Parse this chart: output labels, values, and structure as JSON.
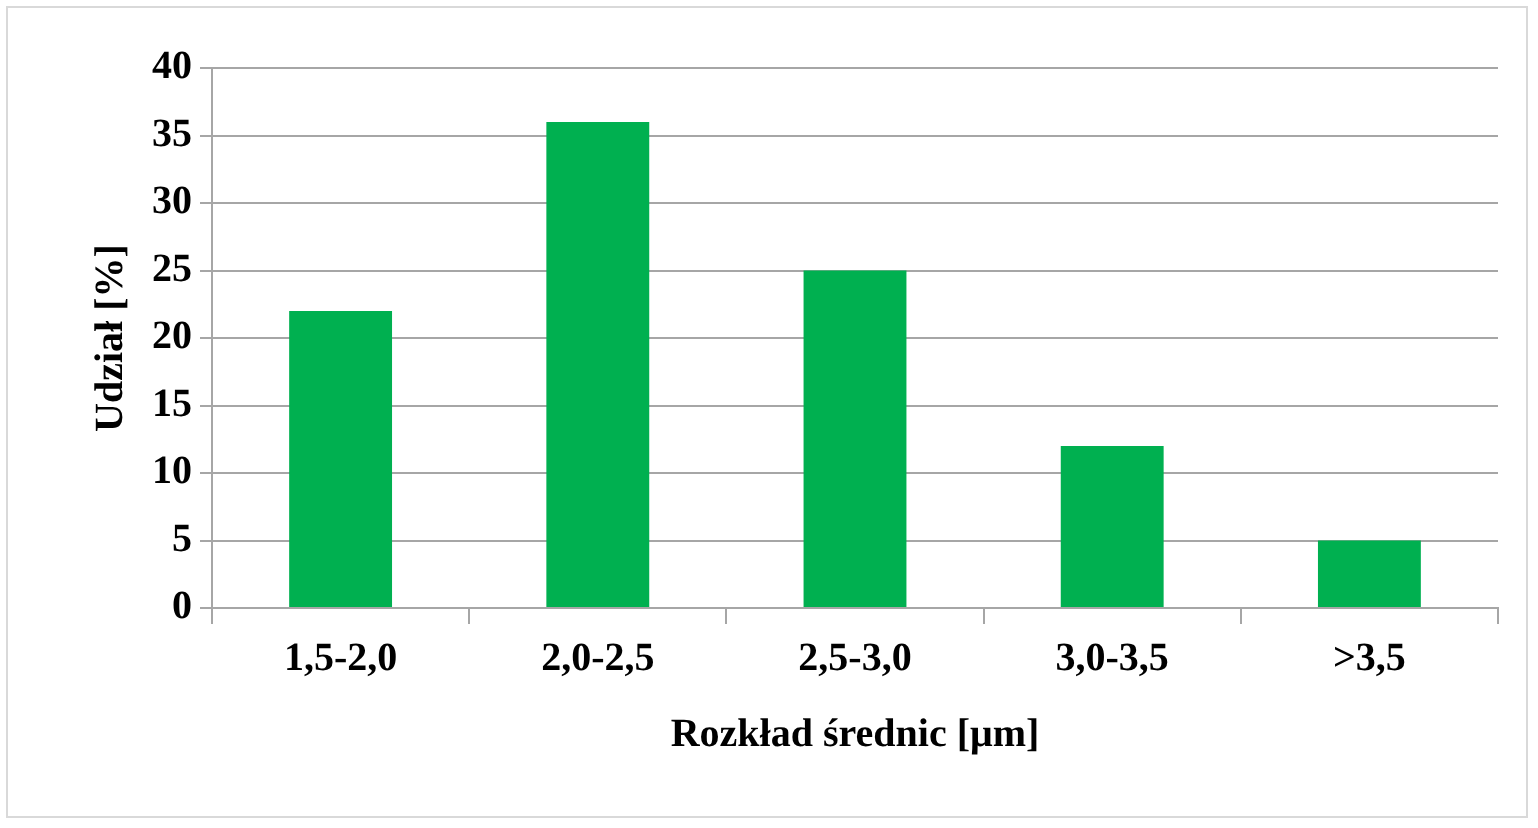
{
  "chart_data": {
    "type": "bar",
    "xlabel": "Rozkład średnic [μm]",
    "ylabel": "Udział [%]",
    "categories": [
      "1,5-2,0",
      "2,0-2,5",
      "2,5-3,0",
      "3,0-3,5",
      ">3,5"
    ],
    "values": [
      22,
      36,
      25,
      12,
      5
    ],
    "color": "#00b050",
    "ylim": [
      0,
      40
    ],
    "yticks": [
      0,
      5,
      10,
      15,
      20,
      25,
      30,
      35,
      40
    ],
    "grid": "y",
    "legend": false
  }
}
